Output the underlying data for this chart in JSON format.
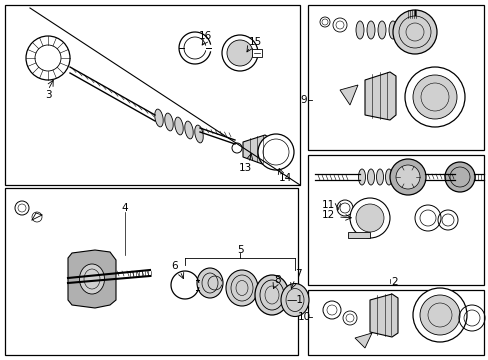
{
  "bg_color": "#ffffff",
  "line_color": "#000000",
  "fig_width": 4.89,
  "fig_height": 3.6,
  "dpi": 100,
  "label_fontsize": 7.5,
  "gray_light": "#d0d0d0",
  "gray_med": "#b0b0b0",
  "gray_dark": "#909090"
}
